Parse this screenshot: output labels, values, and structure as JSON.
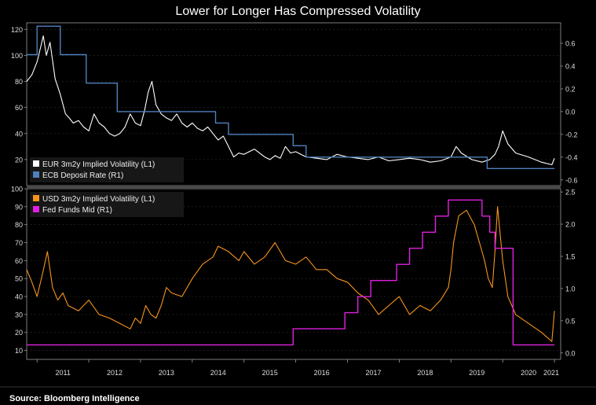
{
  "title": "Lower for Longer Has Compressed Volatility",
  "source": "Source: Bloomberg Intelligence",
  "colors": {
    "background": "#000000",
    "eur_vol": "#ffffff",
    "ecb_rate": "#4f81bd",
    "usd_vol": "#f7941d",
    "fed_funds": "#e020e0",
    "axis": "#9a9a9a",
    "grid": "#2a2a2a"
  },
  "chart_data": [
    {
      "type": "line",
      "panel": "top",
      "x_ticks": [
        "2011",
        "2012",
        "2013",
        "2014",
        "2015",
        "2016",
        "2017",
        "2018",
        "2019",
        "2020",
        "2021"
      ],
      "left_axis": {
        "ylim": [
          0,
          125
        ],
        "ticks": [
          20,
          40,
          60,
          80,
          100,
          120
        ]
      },
      "right_axis": {
        "ylim": [
          -0.65,
          0.78
        ],
        "ticks": [
          "-0.6",
          "-0.4",
          "-0.2",
          "0.0",
          "0.2",
          "0.4",
          "0.6"
        ]
      },
      "legend_placement": "bottom-left",
      "series": [
        {
          "name": "EUR 3m2y Implied Volatility (L1)",
          "axis": "left",
          "x": [
            2010.8,
            2010.9,
            2011.0,
            2011.08,
            2011.12,
            2011.18,
            2011.25,
            2011.35,
            2011.45,
            2011.55,
            2011.62,
            2011.7,
            2011.8,
            2011.9,
            2012.0,
            2012.1,
            2012.2,
            2012.3,
            2012.4,
            2012.5,
            2012.6,
            2012.7,
            2012.8,
            2012.9,
            2013.0,
            2013.08,
            2013.15,
            2013.22,
            2013.3,
            2013.4,
            2013.5,
            2013.6,
            2013.7,
            2013.8,
            2013.9,
            2014.0,
            2014.1,
            2014.2,
            2014.3,
            2014.4,
            2014.5,
            2014.6,
            2014.7,
            2014.8,
            2014.9,
            2015.0,
            2015.1,
            2015.2,
            2015.3,
            2015.4,
            2015.5,
            2015.6,
            2015.7,
            2015.8,
            2015.9,
            2016.0,
            2016.2,
            2016.4,
            2016.6,
            2016.8,
            2017.0,
            2017.2,
            2017.4,
            2017.6,
            2017.8,
            2018.0,
            2018.2,
            2018.4,
            2018.6,
            2018.8,
            2019.0,
            2019.1,
            2019.2,
            2019.4,
            2019.6,
            2019.75,
            2019.85,
            2019.92,
            2020.0,
            2020.1,
            2020.25,
            2020.5,
            2020.75,
            2020.95,
            2021.0
          ],
          "y": [
            80,
            85,
            95,
            108,
            115,
            100,
            110,
            82,
            70,
            55,
            52,
            48,
            50,
            45,
            42,
            55,
            48,
            45,
            40,
            38,
            40,
            45,
            55,
            48,
            46,
            58,
            72,
            80,
            62,
            55,
            52,
            50,
            55,
            48,
            45,
            48,
            44,
            42,
            45,
            40,
            35,
            38,
            30,
            22,
            25,
            24,
            26,
            28,
            25,
            22,
            20,
            23,
            21,
            30,
            25,
            26,
            22,
            21,
            20,
            24,
            22,
            21,
            20,
            22,
            19,
            20,
            21,
            20,
            18,
            19,
            22,
            30,
            25,
            20,
            18,
            20,
            24,
            30,
            42,
            32,
            25,
            22,
            18,
            16,
            21
          ]
        },
        {
          "name": "ECB Deposit Rate (R1)",
          "axis": "right",
          "type": "step",
          "x": [
            2010.8,
            2011.0,
            2011.3,
            2011.45,
            2011.85,
            2011.95,
            2012.55,
            2013.85,
            2014.45,
            2014.7,
            2015.95,
            2016.2,
            2017.0,
            2019.7,
            2021.0
          ],
          "y": [
            0.5,
            0.75,
            0.75,
            0.5,
            0.5,
            0.25,
            0.0,
            0.0,
            -0.1,
            -0.2,
            -0.3,
            -0.4,
            -0.4,
            -0.5,
            -0.5
          ]
        }
      ]
    },
    {
      "type": "line",
      "panel": "bottom",
      "x_ticks": [
        "2011",
        "2012",
        "2013",
        "2014",
        "2015",
        "2016",
        "2017",
        "2018",
        "2019",
        "2020",
        "2021"
      ],
      "left_axis": {
        "ylim": [
          5,
          100
        ],
        "ticks": [
          10,
          20,
          30,
          40,
          50,
          60,
          70,
          80,
          90,
          100
        ]
      },
      "right_axis": {
        "ylim": [
          -0.1,
          2.55
        ],
        "ticks": [
          "0.0",
          "0.5",
          "1.0",
          "1.5",
          "2.0",
          "2.5"
        ]
      },
      "legend_placement": "top-left",
      "series": [
        {
          "name": "USD 3m2y Implied Volatility (L1)",
          "axis": "left",
          "x": [
            2010.8,
            2010.9,
            2011.0,
            2011.1,
            2011.2,
            2011.3,
            2011.4,
            2011.5,
            2011.6,
            2011.8,
            2012.0,
            2012.2,
            2012.4,
            2012.6,
            2012.8,
            2012.9,
            2013.0,
            2013.1,
            2013.2,
            2013.3,
            2013.4,
            2013.5,
            2013.6,
            2013.8,
            2014.0,
            2014.2,
            2014.4,
            2014.5,
            2014.7,
            2014.9,
            2015.0,
            2015.2,
            2015.4,
            2015.6,
            2015.8,
            2016.0,
            2016.2,
            2016.4,
            2016.6,
            2016.8,
            2017.0,
            2017.2,
            2017.4,
            2017.6,
            2017.8,
            2018.0,
            2018.2,
            2018.4,
            2018.6,
            2018.8,
            2018.95,
            2019.0,
            2019.05,
            2019.15,
            2019.3,
            2019.45,
            2019.55,
            2019.65,
            2019.72,
            2019.8,
            2019.85,
            2019.9,
            2020.0,
            2020.1,
            2020.25,
            2020.5,
            2020.75,
            2020.95,
            2021.0
          ],
          "y": [
            55,
            48,
            40,
            52,
            65,
            45,
            38,
            42,
            35,
            32,
            38,
            30,
            28,
            25,
            22,
            28,
            25,
            35,
            30,
            28,
            35,
            45,
            42,
            40,
            50,
            58,
            62,
            68,
            65,
            60,
            65,
            58,
            62,
            70,
            60,
            58,
            62,
            55,
            55,
            50,
            48,
            42,
            38,
            30,
            35,
            40,
            30,
            35,
            32,
            38,
            45,
            55,
            70,
            85,
            88,
            80,
            70,
            60,
            50,
            45,
            65,
            90,
            60,
            40,
            30,
            25,
            20,
            15,
            32
          ]
        },
        {
          "name": "Fed Funds Mid (R1)",
          "axis": "right",
          "type": "step",
          "x": [
            2010.8,
            2015.95,
            2016.95,
            2017.2,
            2017.45,
            2017.95,
            2018.2,
            2018.45,
            2018.7,
            2018.95,
            2019.55,
            2019.6,
            2019.75,
            2019.85,
            2020.2,
            2021.0
          ],
          "y": [
            0.125,
            0.375,
            0.625,
            0.875,
            1.125,
            1.375,
            1.625,
            1.875,
            2.125,
            2.375,
            2.375,
            2.125,
            1.875,
            1.625,
            0.125,
            0.125
          ]
        }
      ]
    }
  ]
}
